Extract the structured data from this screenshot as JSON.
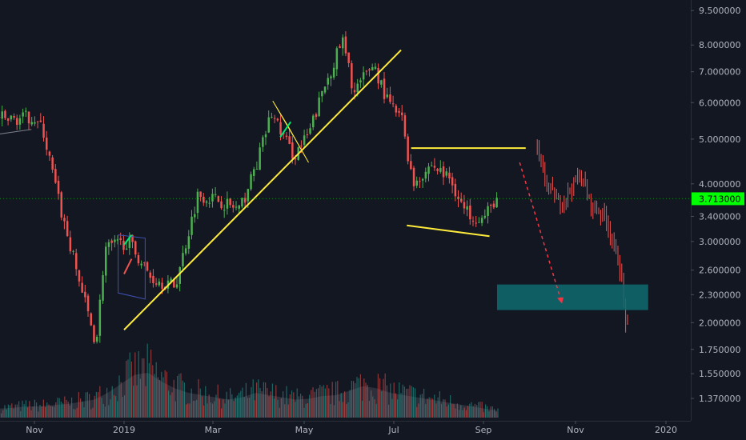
{
  "chart_data": {
    "type": "candlestick",
    "title": "",
    "xlabel": "",
    "ylabel": "",
    "y_scale": "log",
    "ylim": [
      1.25,
      9.7
    ],
    "y_ticks": [
      "9.500000",
      "8.000000",
      "7.000000",
      "6.000000",
      "5.000000",
      "4.000000",
      "3.400000",
      "3.000000",
      "2.600000",
      "2.300000",
      "2.000000",
      "1.750000",
      "1.550000",
      "1.370000"
    ],
    "x_ticks": [
      "Nov",
      "2019",
      "Mar",
      "May",
      "Jul",
      "Sep",
      "Nov",
      "2020"
    ],
    "last_price": "3.713000",
    "grid": false,
    "colors": {
      "background": "#131722",
      "up": "#26a69a",
      "down": "#ef5350",
      "green_candle": "#4caf50",
      "trendline": "#ffeb3b",
      "projection": "#f23645",
      "target_zone": "#0e6b6f",
      "last_price_tag": "#00ff00"
    },
    "price_path": [
      {
        "date": "2018-10-01",
        "price": 5.7
      },
      {
        "date": "2018-10-15",
        "price": 5.5
      },
      {
        "date": "2018-11-01",
        "price": 5.6
      },
      {
        "date": "2018-11-08",
        "price": 5.2
      },
      {
        "date": "2018-11-20",
        "price": 3.5
      },
      {
        "date": "2018-12-05",
        "price": 2.3
      },
      {
        "date": "2018-12-14",
        "price": 1.8
      },
      {
        "date": "2018-12-20",
        "price": 2.9
      },
      {
        "date": "2019-01-05",
        "price": 3.0
      },
      {
        "date": "2019-01-20",
        "price": 2.5
      },
      {
        "date": "2019-02-05",
        "price": 2.4
      },
      {
        "date": "2019-02-20",
        "price": 3.8
      },
      {
        "date": "2019-03-05",
        "price": 3.7
      },
      {
        "date": "2019-03-20",
        "price": 3.5
      },
      {
        "date": "2019-04-01",
        "price": 4.5
      },
      {
        "date": "2019-04-10",
        "price": 5.7
      },
      {
        "date": "2019-04-25",
        "price": 4.6
      },
      {
        "date": "2019-05-05",
        "price": 5.1
      },
      {
        "date": "2019-05-15",
        "price": 6.4
      },
      {
        "date": "2019-05-28",
        "price": 8.2
      },
      {
        "date": "2019-06-05",
        "price": 6.3
      },
      {
        "date": "2019-06-18",
        "price": 7.3
      },
      {
        "date": "2019-06-28",
        "price": 6.0
      },
      {
        "date": "2019-07-08",
        "price": 5.5
      },
      {
        "date": "2019-07-15",
        "price": 4.0
      },
      {
        "date": "2019-07-28",
        "price": 4.4
      },
      {
        "date": "2019-08-10",
        "price": 4.1
      },
      {
        "date": "2019-08-20",
        "price": 3.5
      },
      {
        "date": "2019-09-02",
        "price": 3.35
      },
      {
        "date": "2019-09-10",
        "price": 3.713
      }
    ],
    "projection_path": [
      {
        "date": "2019-10-06",
        "price": 4.9
      },
      {
        "date": "2019-10-12",
        "price": 4.1
      },
      {
        "date": "2019-10-22",
        "price": 3.6
      },
      {
        "date": "2019-11-05",
        "price": 4.2
      },
      {
        "date": "2019-11-12",
        "price": 3.6
      },
      {
        "date": "2019-11-22",
        "price": 3.4
      },
      {
        "date": "2019-12-02",
        "price": 2.6
      },
      {
        "date": "2019-12-06",
        "price": 1.95
      }
    ],
    "trendlines": [
      {
        "name": "rising-support",
        "from": {
          "date": "2019-01-01",
          "price": 1.93
        },
        "to": {
          "date": "2019-07-06",
          "price": 7.8
        }
      },
      {
        "name": "channel-top",
        "from": {
          "date": "2019-07-13",
          "price": 4.78
        },
        "to": {
          "date": "2019-09-29",
          "price": 4.78
        }
      },
      {
        "name": "channel-bottom",
        "from": {
          "date": "2019-07-10",
          "price": 3.25
        },
        "to": {
          "date": "2019-09-05",
          "price": 3.08
        }
      },
      {
        "name": "old-trend",
        "from": {
          "date": "2018-09-05",
          "price": 4.95
        },
        "to": {
          "date": "2018-10-30",
          "price": 5.25
        }
      }
    ],
    "projection_arrow": {
      "from": {
        "date": "2019-09-25",
        "price": 4.45
      },
      "to": {
        "date": "2019-10-23",
        "price": 2.2
      }
    },
    "target_zone": {
      "from_date": "2019-09-10",
      "to_date": "2019-12-20",
      "price_low": 2.13,
      "price_high": 2.42
    },
    "patterns": [
      {
        "name": "flag-1",
        "points": [
          {
            "date": "2018-12-28",
            "price": 3.1
          },
          {
            "date": "2019-01-15",
            "price": 3.05
          },
          {
            "date": "2019-01-15",
            "price": 2.25
          },
          {
            "date": "2018-12-28",
            "price": 2.32
          }
        ]
      },
      {
        "name": "flag-2",
        "points": [
          {
            "date": "2019-04-10",
            "price": 6.05
          },
          {
            "date": "2019-04-25",
            "price": 5.0
          },
          {
            "date": "2019-05-04",
            "price": 4.45
          },
          {
            "date": "2019-04-20",
            "price": 5.35
          }
        ]
      }
    ],
    "volume": [
      0.2,
      0.22,
      0.25,
      0.25,
      0.28,
      0.3,
      0.35,
      0.4,
      0.55,
      0.75,
      0.95,
      1.0,
      0.8,
      0.65,
      0.55,
      0.5,
      0.45,
      0.4,
      0.45,
      0.55,
      0.5,
      0.45,
      0.4,
      0.42,
      0.48,
      0.5,
      0.6,
      0.7,
      0.65,
      0.55,
      0.5,
      0.45,
      0.4,
      0.35,
      0.3,
      0.25,
      0.2,
      0.15
    ]
  }
}
